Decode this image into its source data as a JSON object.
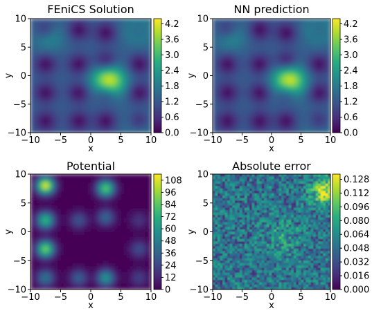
{
  "chart_data": [
    {
      "type": "heatmap",
      "title": "FEniCS Solution",
      "xlabel": "x",
      "ylabel": "y",
      "xlim": [
        -10,
        10
      ],
      "ylim": [
        -10,
        10
      ],
      "xticks": [
        "−10",
        "−5",
        "0",
        "5",
        "10"
      ],
      "yticks": [
        "10",
        "5",
        "0",
        "−5",
        "−10"
      ],
      "colormap": "viridis",
      "colorbar_range": [
        0,
        4.4
      ],
      "colorbar_ticks": [
        "4.2",
        "3.6",
        "3.0",
        "2.4",
        "1.8",
        "1.2",
        "0.6",
        "0.0"
      ],
      "features": "bright peak near (3, -1); secondary maxima near (8, 8) and (-7, 7); dark wells at the potential minima sites"
    },
    {
      "type": "heatmap",
      "title": "NN prediction",
      "xlabel": "x",
      "ylabel": "y",
      "xlim": [
        -10,
        10
      ],
      "ylim": [
        -10,
        10
      ],
      "xticks": [
        "−10",
        "−5",
        "0",
        "5",
        "10"
      ],
      "yticks": [
        "10",
        "5",
        "0",
        "−5",
        "−10"
      ],
      "colormap": "viridis",
      "colorbar_range": [
        0,
        4.4
      ],
      "colorbar_ticks": [
        "4.2",
        "3.6",
        "3.0",
        "2.4",
        "1.8",
        "1.2",
        "0.6",
        "0.0"
      ],
      "features": "visually matches FEniCS Solution"
    },
    {
      "type": "heatmap",
      "title": "Potential",
      "xlabel": "x",
      "ylabel": "y",
      "xlim": [
        -10,
        10
      ],
      "ylim": [
        -10,
        10
      ],
      "xticks": [
        "−10",
        "−5",
        "0",
        "5",
        "10"
      ],
      "yticks": [
        "10",
        "5",
        "0",
        "−5",
        "−10"
      ],
      "colormap": "viridis",
      "colorbar_range": [
        0,
        114
      ],
      "colorbar_ticks": [
        "108",
        "96",
        "84",
        "72",
        "60",
        "48",
        "36",
        "24",
        "12",
        "0"
      ],
      "features": "gaussian bumps: strongest near (-7.5, 8) and (2.5, 7.5); others near (-7.5, 2), (-7.5, -3), (-7.5, -8), (-2, -8), (-2, 2), (2.5, 2.5), (8, 2), (8, -3), (8, -8)"
    },
    {
      "type": "heatmap",
      "title": "Absolute error",
      "xlabel": "x",
      "ylabel": "y",
      "xlim": [
        -10,
        10
      ],
      "ylim": [
        -10,
        10
      ],
      "xticks": [
        "−10",
        "−5",
        "0",
        "5",
        "10"
      ],
      "yticks": [
        "10",
        "5",
        "0",
        "−5",
        "−10"
      ],
      "colormap": "viridis",
      "colorbar_range": [
        0,
        0.134
      ],
      "colorbar_ticks": [
        "0.128",
        "0.112",
        "0.096",
        "0.080",
        "0.064",
        "0.048",
        "0.032",
        "0.016",
        "0.000"
      ],
      "features": "noisy field mostly 0.02-0.06, higher (up to ~0.13) near top-right corner"
    }
  ]
}
